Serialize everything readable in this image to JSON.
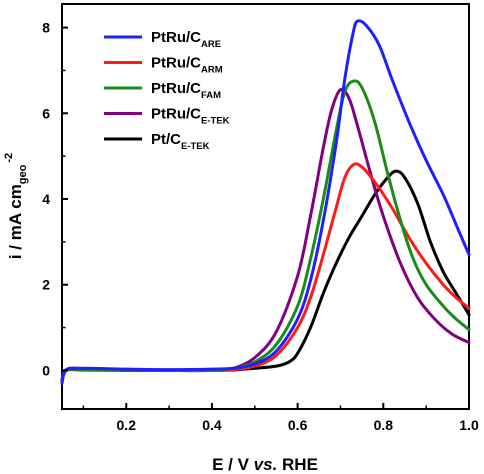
{
  "chart_data": {
    "type": "line",
    "title": "",
    "xlabel": {
      "prefix": "E / V ",
      "italic": "vs.",
      "suffix": " RHE"
    },
    "ylabel": {
      "base": "i / mA cm",
      "sub": "geo",
      "sup": "-2"
    },
    "xlim": [
      0.05,
      1.0
    ],
    "ylim": [
      -0.9,
      8.55
    ],
    "xticks": [
      0.2,
      0.4,
      0.6,
      0.8,
      1.0
    ],
    "xtick_labels": [
      "0.2",
      "0.4",
      "0.6",
      "0.8",
      "1.0"
    ],
    "yticks": [
      0,
      2,
      4,
      6,
      8
    ],
    "ytick_labels": [
      "0",
      "2",
      "4",
      "6",
      "8"
    ],
    "grid": false,
    "legend_position": "top-left",
    "series": [
      {
        "name": "PtRu/C",
        "sub": "ARE",
        "color": "#1f1fff",
        "points": [
          [
            0.05,
            -0.3
          ],
          [
            0.06,
            0.02
          ],
          [
            0.1,
            0.05
          ],
          [
            0.2,
            0.03
          ],
          [
            0.3,
            0.02
          ],
          [
            0.4,
            0.03
          ],
          [
            0.45,
            0.05
          ],
          [
            0.5,
            0.15
          ],
          [
            0.55,
            0.45
          ],
          [
            0.6,
            1.2
          ],
          [
            0.63,
            2.1
          ],
          [
            0.66,
            3.5
          ],
          [
            0.69,
            5.3
          ],
          [
            0.71,
            6.8
          ],
          [
            0.73,
            7.9
          ],
          [
            0.74,
            8.15
          ],
          [
            0.76,
            8.05
          ],
          [
            0.79,
            7.6
          ],
          [
            0.82,
            6.8
          ],
          [
            0.86,
            5.8
          ],
          [
            0.9,
            4.9
          ],
          [
            0.94,
            4.1
          ],
          [
            0.97,
            3.4
          ],
          [
            1.0,
            2.7
          ]
        ]
      },
      {
        "name": "PtRu/C",
        "sub": "ARM",
        "color": "#ff1a1a",
        "points": [
          [
            0.05,
            -0.25
          ],
          [
            0.06,
            0.01
          ],
          [
            0.1,
            0.03
          ],
          [
            0.2,
            0.02
          ],
          [
            0.3,
            0.01
          ],
          [
            0.4,
            0.0
          ],
          [
            0.45,
            0.02
          ],
          [
            0.5,
            0.1
          ],
          [
            0.55,
            0.35
          ],
          [
            0.6,
            1.0
          ],
          [
            0.63,
            1.7
          ],
          [
            0.66,
            2.7
          ],
          [
            0.69,
            3.8
          ],
          [
            0.71,
            4.5
          ],
          [
            0.73,
            4.8
          ],
          [
            0.75,
            4.75
          ],
          [
            0.78,
            4.4
          ],
          [
            0.82,
            3.8
          ],
          [
            0.86,
            3.1
          ],
          [
            0.9,
            2.5
          ],
          [
            0.94,
            2.0
          ],
          [
            0.97,
            1.7
          ],
          [
            1.0,
            1.45
          ]
        ]
      },
      {
        "name": "PtRu/C",
        "sub": "FAM",
        "color": "#1a8a1a",
        "points": [
          [
            0.05,
            -0.25
          ],
          [
            0.06,
            0.01
          ],
          [
            0.1,
            0.02
          ],
          [
            0.2,
            0.01
          ],
          [
            0.3,
            0.0
          ],
          [
            0.4,
            0.0
          ],
          [
            0.45,
            0.05
          ],
          [
            0.5,
            0.2
          ],
          [
            0.55,
            0.6
          ],
          [
            0.6,
            1.5
          ],
          [
            0.63,
            2.6
          ],
          [
            0.66,
            4.0
          ],
          [
            0.69,
            5.6
          ],
          [
            0.71,
            6.5
          ],
          [
            0.73,
            6.75
          ],
          [
            0.75,
            6.6
          ],
          [
            0.78,
            5.8
          ],
          [
            0.81,
            4.6
          ],
          [
            0.84,
            3.5
          ],
          [
            0.87,
            2.6
          ],
          [
            0.9,
            2.0
          ],
          [
            0.94,
            1.5
          ],
          [
            0.97,
            1.2
          ],
          [
            1.0,
            0.95
          ]
        ]
      },
      {
        "name": "PtRu/C",
        "sub": "E-TEK",
        "color": "#800080",
        "points": [
          [
            0.05,
            -0.2
          ],
          [
            0.06,
            0.01
          ],
          [
            0.1,
            0.02
          ],
          [
            0.2,
            0.01
          ],
          [
            0.3,
            0.0
          ],
          [
            0.4,
            0.0
          ],
          [
            0.45,
            0.05
          ],
          [
            0.5,
            0.3
          ],
          [
            0.55,
            0.9
          ],
          [
            0.6,
            2.2
          ],
          [
            0.63,
            3.6
          ],
          [
            0.66,
            5.2
          ],
          [
            0.68,
            6.1
          ],
          [
            0.7,
            6.55
          ],
          [
            0.72,
            6.35
          ],
          [
            0.74,
            5.7
          ],
          [
            0.77,
            4.6
          ],
          [
            0.8,
            3.6
          ],
          [
            0.84,
            2.5
          ],
          [
            0.88,
            1.7
          ],
          [
            0.92,
            1.2
          ],
          [
            0.96,
            0.85
          ],
          [
            1.0,
            0.65
          ]
        ]
      },
      {
        "name": "Pt/C",
        "sub": "E-TEK",
        "color": "#000000",
        "points": [
          [
            0.05,
            -0.25
          ],
          [
            0.06,
            0.0
          ],
          [
            0.1,
            0.01
          ],
          [
            0.2,
            0.0
          ],
          [
            0.3,
            0.0
          ],
          [
            0.4,
            0.0
          ],
          [
            0.45,
            0.01
          ],
          [
            0.5,
            0.05
          ],
          [
            0.55,
            0.1
          ],
          [
            0.58,
            0.2
          ],
          [
            0.6,
            0.4
          ],
          [
            0.63,
            1.0
          ],
          [
            0.66,
            1.8
          ],
          [
            0.69,
            2.5
          ],
          [
            0.72,
            3.1
          ],
          [
            0.75,
            3.6
          ],
          [
            0.78,
            4.1
          ],
          [
            0.81,
            4.5
          ],
          [
            0.83,
            4.65
          ],
          [
            0.85,
            4.5
          ],
          [
            0.88,
            3.9
          ],
          [
            0.91,
            3.0
          ],
          [
            0.94,
            2.3
          ],
          [
            0.97,
            1.8
          ],
          [
            1.0,
            1.3
          ]
        ]
      }
    ]
  }
}
